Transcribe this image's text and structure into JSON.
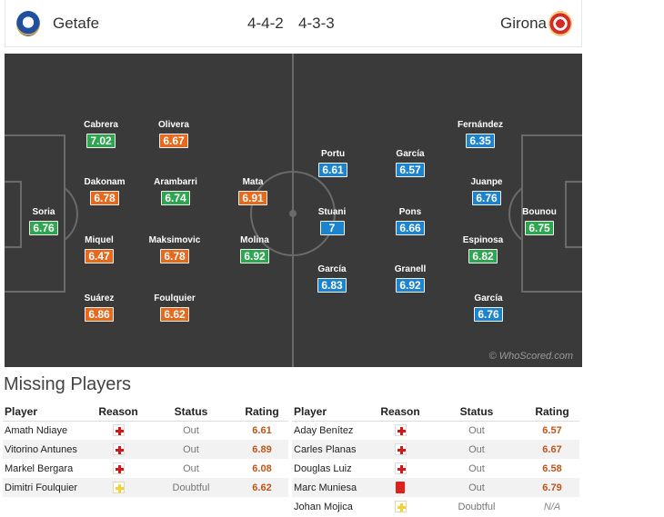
{
  "header": {
    "home_team": "Getafe",
    "away_team": "Girona",
    "home_formation": "4-4-2",
    "away_formation": "4-3-3"
  },
  "pitch": {
    "watermark": "© WhoScored.com",
    "home_players": [
      {
        "name": "Soria",
        "rating": "6.76",
        "color": "green"
      },
      {
        "name": "Cabrera",
        "rating": "7.02",
        "color": "green"
      },
      {
        "name": "Dakonam",
        "rating": "6.78",
        "color": "orange"
      },
      {
        "name": "Miquel",
        "rating": "6.47",
        "color": "orange"
      },
      {
        "name": "Suárez",
        "rating": "6.86",
        "color": "orange"
      },
      {
        "name": "Olivera",
        "rating": "6.67",
        "color": "orange"
      },
      {
        "name": "Arambarri",
        "rating": "6.74",
        "color": "green"
      },
      {
        "name": "Maksimovic",
        "rating": "6.78",
        "color": "orange"
      },
      {
        "name": "Foulquier",
        "rating": "6.62",
        "color": "orange"
      },
      {
        "name": "Mata",
        "rating": "6.91",
        "color": "orange"
      },
      {
        "name": "Molina",
        "rating": "6.92",
        "color": "green"
      }
    ],
    "away_players": [
      {
        "name": "Portu",
        "rating": "6.61",
        "color": "blue"
      },
      {
        "name": "Stuani",
        "rating": "7",
        "color": "blue"
      },
      {
        "name": "García",
        "rating": "6.83",
        "color": "blue"
      },
      {
        "name": "García",
        "rating": "6.57",
        "color": "blue"
      },
      {
        "name": "Pons",
        "rating": "6.66",
        "color": "blue"
      },
      {
        "name": "Granell",
        "rating": "6.92",
        "color": "blue"
      },
      {
        "name": "Fernández",
        "rating": "6.35",
        "color": "blue"
      },
      {
        "name": "Juanpe",
        "rating": "6.76",
        "color": "blue"
      },
      {
        "name": "Espinosa",
        "rating": "6.82",
        "color": "green"
      },
      {
        "name": "García",
        "rating": "6.76",
        "color": "blue"
      },
      {
        "name": "Bounou",
        "rating": "6.75",
        "color": "green"
      }
    ]
  },
  "missing": {
    "title": "Missing Players",
    "columns": {
      "player": "Player",
      "reason": "Reason",
      "status": "Status",
      "rating": "Rating"
    },
    "home": [
      {
        "player": "Amath Ndiaye",
        "reason": "injury",
        "status": "Out",
        "rating": "6.61"
      },
      {
        "player": "Vitorino Antunes",
        "reason": "injury",
        "status": "Out",
        "rating": "6.89"
      },
      {
        "player": "Markel Bergara",
        "reason": "injury",
        "status": "Out",
        "rating": "6.08"
      },
      {
        "player": "Dimitri Foulquier",
        "reason": "doubtful",
        "status": "Doubtful",
        "rating": "6.62"
      }
    ],
    "away": [
      {
        "player": "Aday Benítez",
        "reason": "injury",
        "status": "Out",
        "rating": "6.57"
      },
      {
        "player": "Carles Planas",
        "reason": "injury",
        "status": "Out",
        "rating": "6.67"
      },
      {
        "player": "Douglas Luiz",
        "reason": "injury",
        "status": "Out",
        "rating": "6.58"
      },
      {
        "player": "Marc Muniesa",
        "reason": "red-card",
        "status": "Out",
        "rating": "6.79"
      },
      {
        "player": "Johan Mojica",
        "reason": "doubtful",
        "status": "Doubtful",
        "rating": "N/A"
      }
    ]
  },
  "colors": {
    "green": "#2ea650",
    "orange": "#e8681c",
    "blue": "#1c83cf",
    "pitch": "#3a3a3a"
  }
}
